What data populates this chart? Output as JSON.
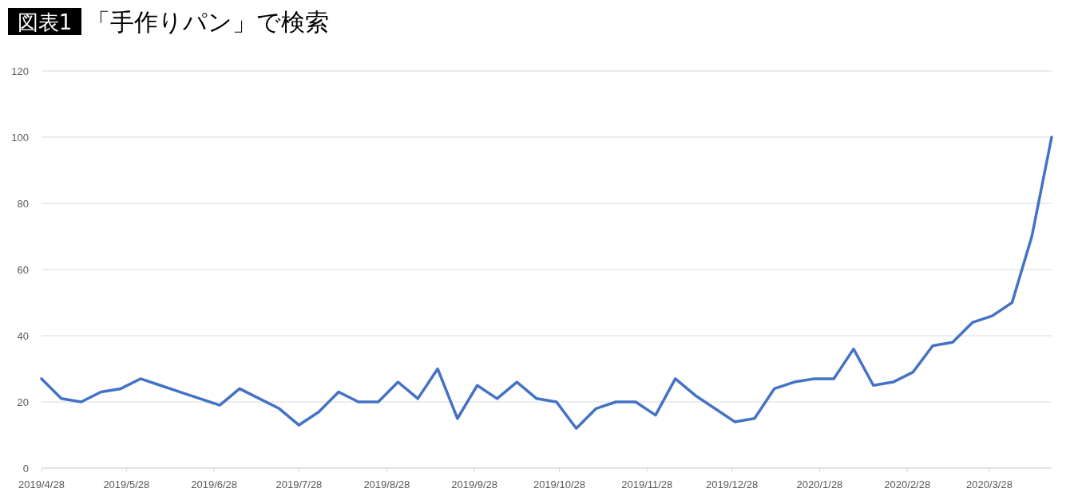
{
  "chart_data": {
    "type": "line",
    "title": "図表1",
    "subtitle": "「手作りパン」で検索",
    "x": [
      "2019-04-28",
      "2019-05-05",
      "2019-05-12",
      "2019-05-19",
      "2019-05-26",
      "2019-06-02",
      "2019-06-09",
      "2019-06-16",
      "2019-06-23",
      "2019-06-30",
      "2019-07-07",
      "2019-07-14",
      "2019-07-21",
      "2019-07-28",
      "2019-08-04",
      "2019-08-11",
      "2019-08-18",
      "2019-08-25",
      "2019-09-01",
      "2019-09-08",
      "2019-09-15",
      "2019-09-22",
      "2019-09-29",
      "2019-10-06",
      "2019-10-13",
      "2019-10-20",
      "2019-10-27",
      "2019-11-03",
      "2019-11-10",
      "2019-11-17",
      "2019-11-24",
      "2019-12-01",
      "2019-12-08",
      "2019-12-15",
      "2019-12-22",
      "2019-12-29",
      "2020-01-05",
      "2020-01-12",
      "2020-01-19",
      "2020-01-26",
      "2020-02-02",
      "2020-02-09",
      "2020-02-16",
      "2020-02-23",
      "2020-03-01",
      "2020-03-08",
      "2020-03-15",
      "2020-03-22",
      "2020-03-29",
      "2020-04-05",
      "2020-04-12",
      "2020-04-19"
    ],
    "series": [
      {
        "color": "#4472c4",
        "values": [
          27,
          21,
          20,
          23,
          24,
          27,
          25,
          23,
          21,
          19,
          24,
          21,
          18,
          13,
          17,
          23,
          20,
          20,
          26,
          21,
          30,
          15,
          25,
          21,
          26,
          21,
          20,
          12,
          18,
          20,
          20,
          16,
          27,
          22,
          18,
          14,
          15,
          24,
          26,
          27,
          27,
          36,
          25,
          26,
          29,
          37,
          38,
          44,
          46,
          50,
          70,
          100
        ]
      }
    ],
    "xlim": [
      "2019-04-28",
      "2020-04-19"
    ],
    "xticks": [
      {
        "value": "2019-04-28",
        "label": "2019/4/28"
      },
      {
        "value": "2019-05-28",
        "label": "2019/5/28"
      },
      {
        "value": "2019-06-28",
        "label": "2019/6/28"
      },
      {
        "value": "2019-07-28",
        "label": "2019/7/28"
      },
      {
        "value": "2019-08-28",
        "label": "2019/8/28"
      },
      {
        "value": "2019-09-28",
        "label": "2019/9/28"
      },
      {
        "value": "2019-10-28",
        "label": "2019/10/28"
      },
      {
        "value": "2019-11-28",
        "label": "2019/11/28"
      },
      {
        "value": "2019-12-28",
        "label": "2019/12/28"
      },
      {
        "value": "2020-01-28",
        "label": "2020/1/28"
      },
      {
        "value": "2020-02-28",
        "label": "2020/2/28"
      },
      {
        "value": "2020-03-28",
        "label": "2020/3/28"
      }
    ],
    "ylim": [
      0,
      120
    ],
    "yticks": [
      0,
      20,
      40,
      60,
      80,
      100,
      120
    ],
    "grid": "y",
    "marker": "none",
    "line_style": "solid"
  }
}
